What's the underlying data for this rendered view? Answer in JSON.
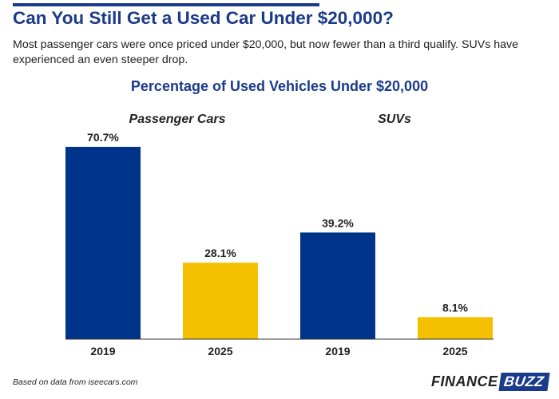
{
  "header": {
    "title": "Can You Still Get a Used Car Under $20,000?",
    "subtitle": "Most passenger cars were once priced under $20,000, but now fewer than a third qualify. SUVs have experienced an even steeper drop."
  },
  "chart_data": {
    "type": "bar",
    "title": "Percentage of Used Vehicles Under $20,000",
    "groups": [
      "Passenger Cars",
      "SUVs"
    ],
    "bars": [
      {
        "group": "Passenger Cars",
        "year": "2019",
        "value": 70.7,
        "label": "70.7%",
        "color": "#00338a"
      },
      {
        "group": "Passenger Cars",
        "year": "2025",
        "value": 28.1,
        "label": "28.1%",
        "color": "#f5c000"
      },
      {
        "group": "SUVs",
        "year": "2019",
        "value": 39.2,
        "label": "39.2%",
        "color": "#00338a"
      },
      {
        "group": "SUVs",
        "year": "2025",
        "value": 8.1,
        "label": "8.1%",
        "color": "#f5c000"
      }
    ],
    "ylim": [
      0,
      70.7
    ],
    "xlabel": "",
    "ylabel": "",
    "grid": false
  },
  "footer": {
    "source": "Based on data from iseecars.com",
    "logo_part1": "FINANCE",
    "logo_part2": "BUZZ"
  }
}
